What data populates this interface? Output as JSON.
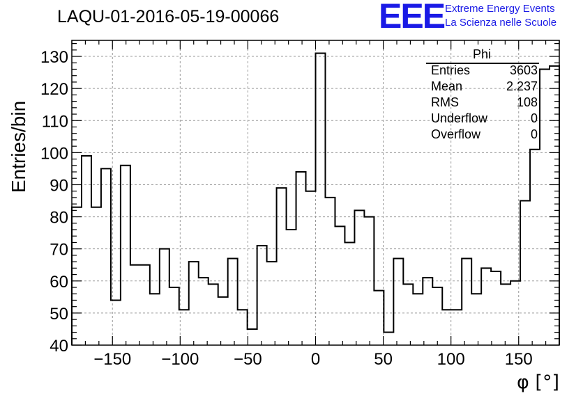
{
  "title": "LAQU-01-2016-05-19-00066",
  "logo": {
    "mark": "EEE",
    "line1": "Extreme Energy Events",
    "line2": "La Scienza nelle Scuole",
    "color": "#1a1ae6"
  },
  "stats_box": {
    "name": "Phi",
    "rows": [
      {
        "label": "Entries",
        "value": "3603"
      },
      {
        "label": "Mean",
        "value": "2.237"
      },
      {
        "label": "RMS",
        "value": "108"
      },
      {
        "label": "Underflow",
        "value": "0"
      },
      {
        "label": "Overflow",
        "value": "0"
      }
    ]
  },
  "chart_data": {
    "type": "bar",
    "histogram": true,
    "title": "LAQU-01-2016-05-19-00066",
    "xlabel": "φ [°]",
    "ylabel": "Entries/bin",
    "xlim": [
      -180,
      180
    ],
    "ylim": [
      40,
      135
    ],
    "bin_width": 7.2,
    "xticks": [
      -150,
      -100,
      -50,
      0,
      50,
      100,
      150
    ],
    "xtick_labels": [
      "−150",
      "−100",
      "−50",
      "0",
      "50",
      "100",
      "150"
    ],
    "yticks": [
      40,
      50,
      60,
      70,
      80,
      90,
      100,
      110,
      120,
      130
    ],
    "grid": true,
    "series": [
      {
        "name": "Phi",
        "values": [
          83,
          99,
          83,
          95,
          54,
          96,
          65,
          65,
          56,
          70,
          58,
          51,
          66,
          61,
          59,
          55,
          67,
          51,
          45,
          71,
          66,
          89,
          76,
          94,
          88,
          131,
          86,
          77,
          72,
          82,
          80,
          57,
          44,
          67,
          59,
          56,
          61,
          58,
          51,
          51,
          67,
          56,
          64,
          63,
          59,
          60,
          85,
          101,
          126,
          127
        ]
      }
    ]
  }
}
